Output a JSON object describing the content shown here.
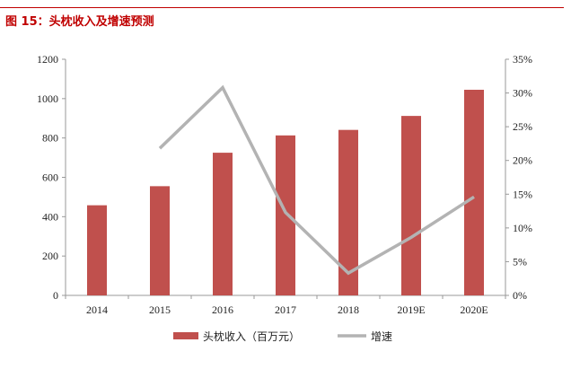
{
  "title": "图 15：头枕收入及增速预测",
  "chart_data": {
    "type": "bar+line",
    "categories": [
      "2014",
      "2015",
      "2016",
      "2017",
      "2018",
      "2019E",
      "2020E"
    ],
    "series": [
      {
        "name": "头枕收入（百万元）",
        "type": "bar",
        "axis": "left",
        "color": "#c0504d",
        "values": [
          458,
          555,
          725,
          813,
          841,
          912,
          1045
        ]
      },
      {
        "name": "增速",
        "type": "line",
        "axis": "right",
        "color": "#b3b3b3",
        "values": [
          null,
          21.8,
          30.8,
          12.3,
          3.3,
          8.6,
          14.6
        ]
      }
    ],
    "yleft": {
      "lim": [
        0,
        1200
      ],
      "ticks": [
        "0",
        "200",
        "400",
        "600",
        "800",
        "1000",
        "1200"
      ]
    },
    "yright": {
      "lim": [
        0,
        35
      ],
      "ticks": [
        "0%",
        "5%",
        "10%",
        "15%",
        "20%",
        "25%",
        "30%",
        "35%"
      ]
    },
    "grid": false,
    "legend": "bottom"
  }
}
